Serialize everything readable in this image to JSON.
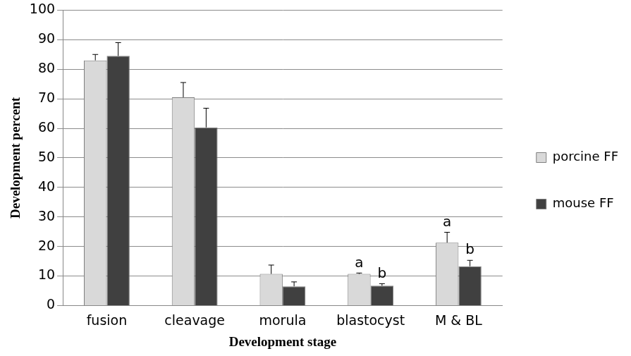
{
  "chart_data": {
    "type": "bar",
    "x_label": "Development stage",
    "y_label": "Development percent",
    "categories": [
      "fusion",
      "cleavage",
      "morula",
      "blastocyst",
      "M & BL"
    ],
    "series": [
      {
        "name": "porcine FF",
        "color": "#d9d9d9",
        "values": [
          83,
          70.5,
          10.7,
          10.7,
          21.3
        ],
        "errors": [
          2,
          5,
          3,
          0.3,
          3.5
        ],
        "significance_letters": [
          null,
          null,
          null,
          "a",
          "a"
        ]
      },
      {
        "name": "mouse FF",
        "color": "#404040",
        "values": [
          84.5,
          60.3,
          6.5,
          6.7,
          13.3
        ],
        "errors": [
          4.5,
          6.5,
          1.5,
          0.7,
          2
        ],
        "significance_letters": [
          null,
          null,
          null,
          "b",
          "b"
        ]
      }
    ],
    "ylim": [
      0,
      100
    ],
    "yticks": [
      0,
      10,
      20,
      30,
      40,
      50,
      60,
      70,
      80,
      90,
      100
    ],
    "grid": true,
    "legend": "right"
  }
}
